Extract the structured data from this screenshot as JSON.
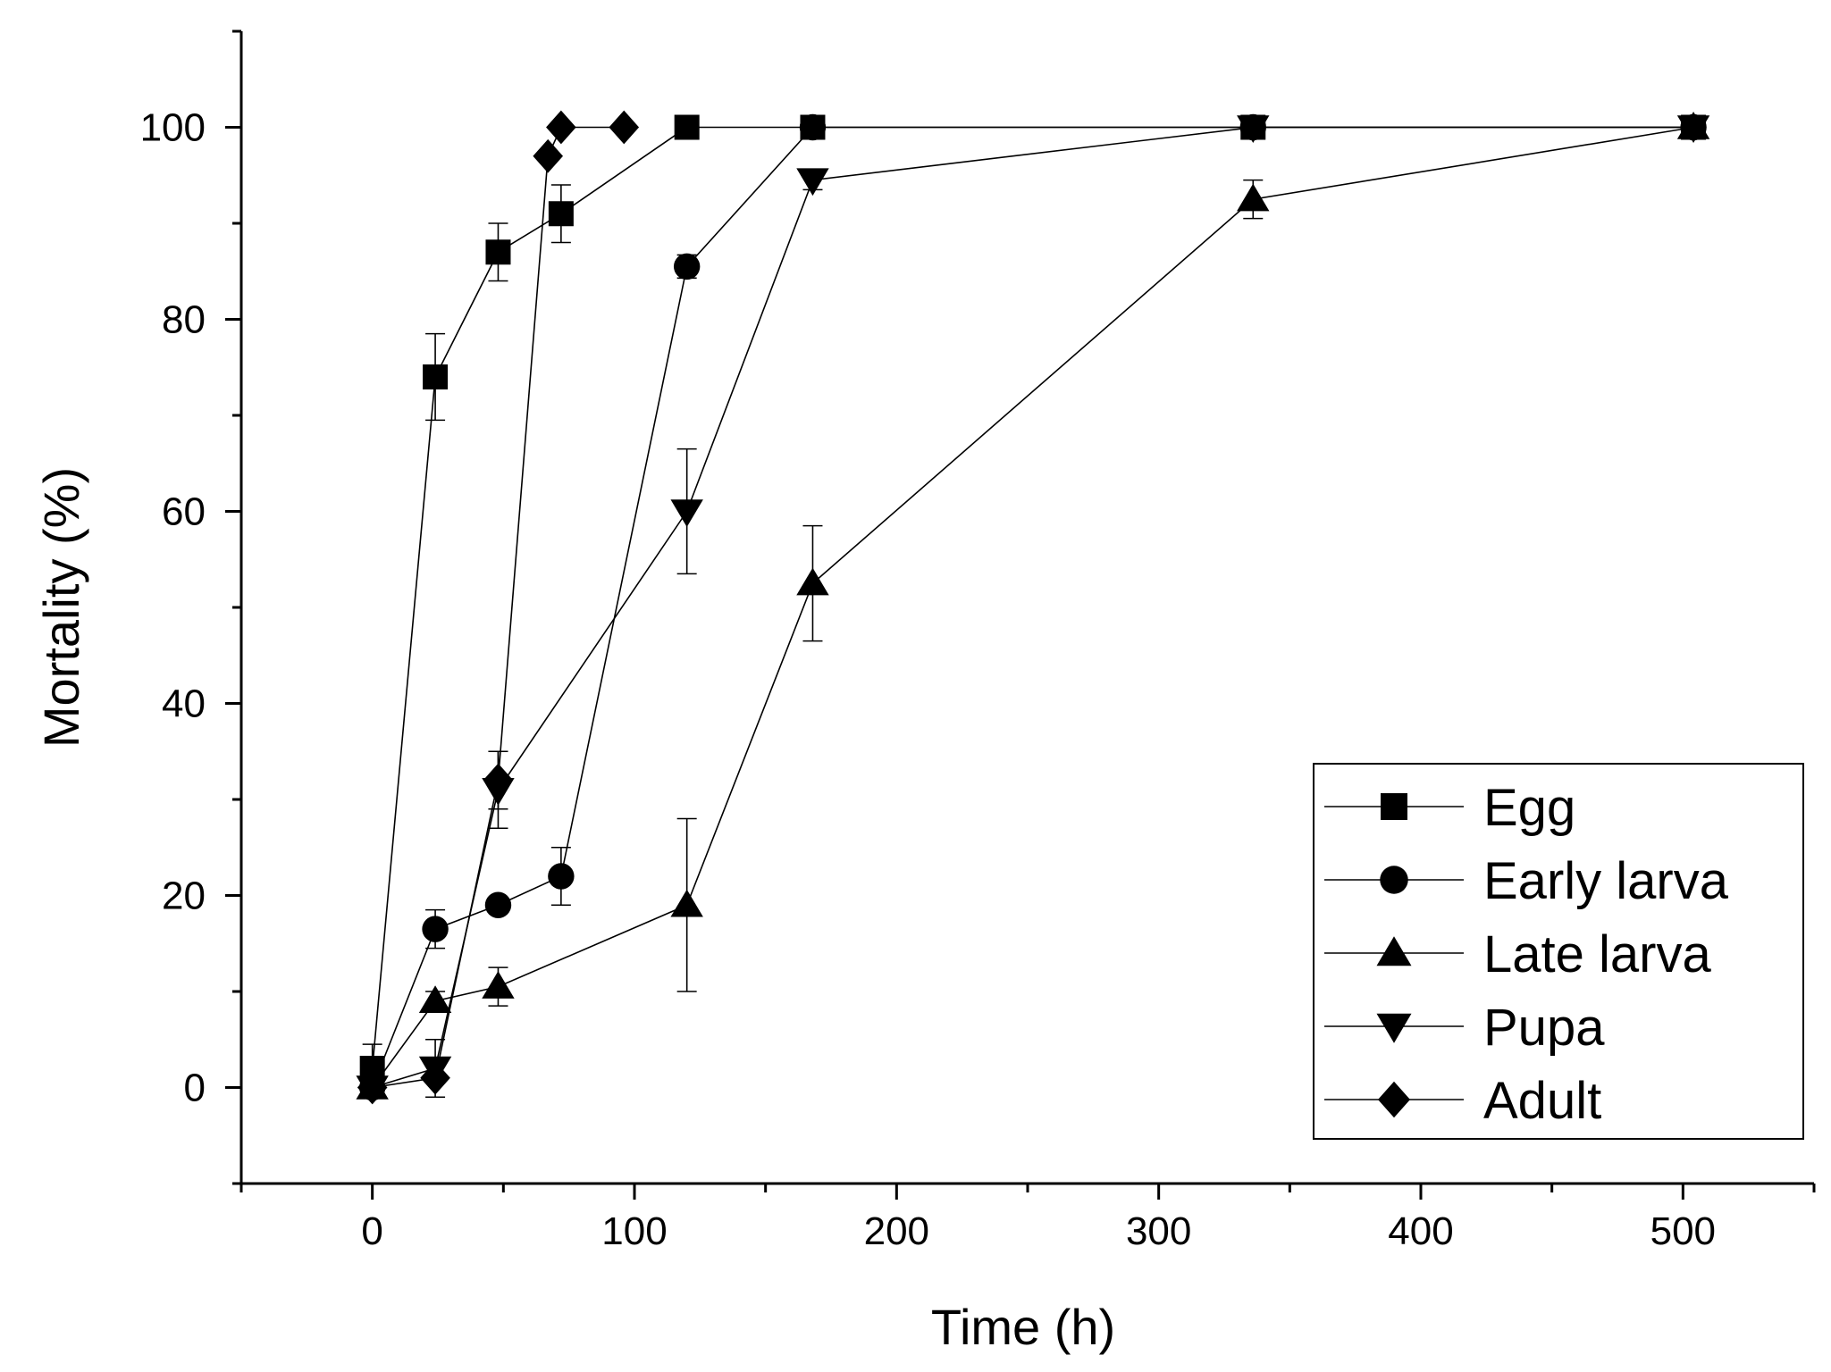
{
  "chart_data": {
    "type": "line",
    "title": "",
    "xlabel": "Time (h)",
    "ylabel": "Mortality (%)",
    "xlim": [
      -50,
      550
    ],
    "ylim": [
      -10,
      110
    ],
    "x_ticks": [
      0,
      100,
      200,
      300,
      400,
      500
    ],
    "y_ticks": [
      0,
      20,
      40,
      60,
      80,
      100
    ],
    "grid": false,
    "legend_position": "bottom-right",
    "series": [
      {
        "name": "Egg",
        "marker": "square",
        "x": [
          0,
          24,
          48,
          72,
          120,
          168,
          336,
          504
        ],
        "y": [
          2,
          74,
          87,
          91,
          100,
          100,
          100,
          100
        ],
        "err": [
          2.5,
          4.5,
          3,
          3,
          0,
          0,
          0,
          0
        ]
      },
      {
        "name": "Early larva",
        "marker": "circle",
        "x": [
          0,
          24,
          48,
          72,
          120,
          168,
          336,
          504
        ],
        "y": [
          0,
          16.5,
          19,
          22,
          85.5,
          100,
          100,
          100
        ],
        "err": [
          0.5,
          2,
          0.5,
          3,
          1.2,
          0,
          0,
          0
        ]
      },
      {
        "name": "Late larva",
        "marker": "triangle-up",
        "x": [
          0,
          24,
          48,
          120,
          168,
          336,
          504
        ],
        "y": [
          0,
          9,
          10.5,
          19,
          52.5,
          92.5,
          100
        ],
        "err": [
          0.5,
          1,
          2,
          9,
          6,
          2,
          0
        ]
      },
      {
        "name": "Pupa",
        "marker": "triangle-down",
        "x": [
          0,
          24,
          48,
          120,
          168,
          336,
          504
        ],
        "y": [
          0,
          2,
          31,
          60,
          94.5,
          100,
          100
        ],
        "err": [
          0.5,
          3,
          4,
          6.5,
          1,
          0,
          0
        ]
      },
      {
        "name": "Adult",
        "marker": "diamond",
        "x": [
          0,
          24,
          48,
          67,
          72,
          96
        ],
        "y": [
          0,
          1,
          32,
          97,
          100,
          100
        ],
        "err": [
          0,
          0,
          3,
          0,
          0,
          0
        ]
      }
    ]
  }
}
